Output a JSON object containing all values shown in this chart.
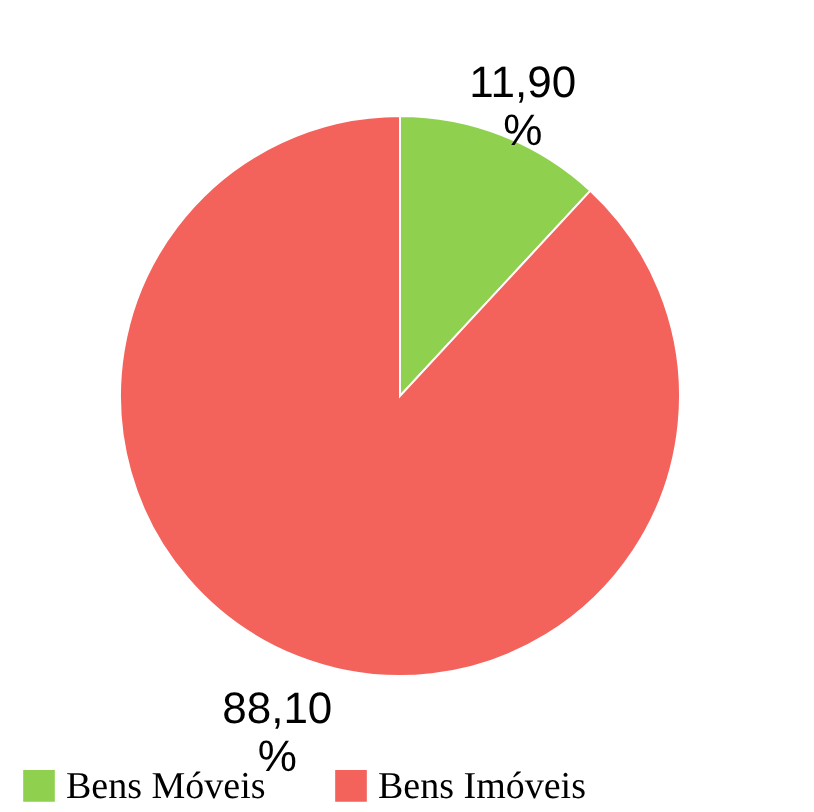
{
  "chart_data": {
    "type": "pie",
    "categories": [
      "Bens Móveis",
      "Bens Imóveis"
    ],
    "values": [
      11.9,
      88.1
    ],
    "colors": [
      "#8fd14f",
      "#f4625c"
    ],
    "value_labels": [
      "11,90 %",
      "88,10 %"
    ],
    "legend": "bottom"
  }
}
